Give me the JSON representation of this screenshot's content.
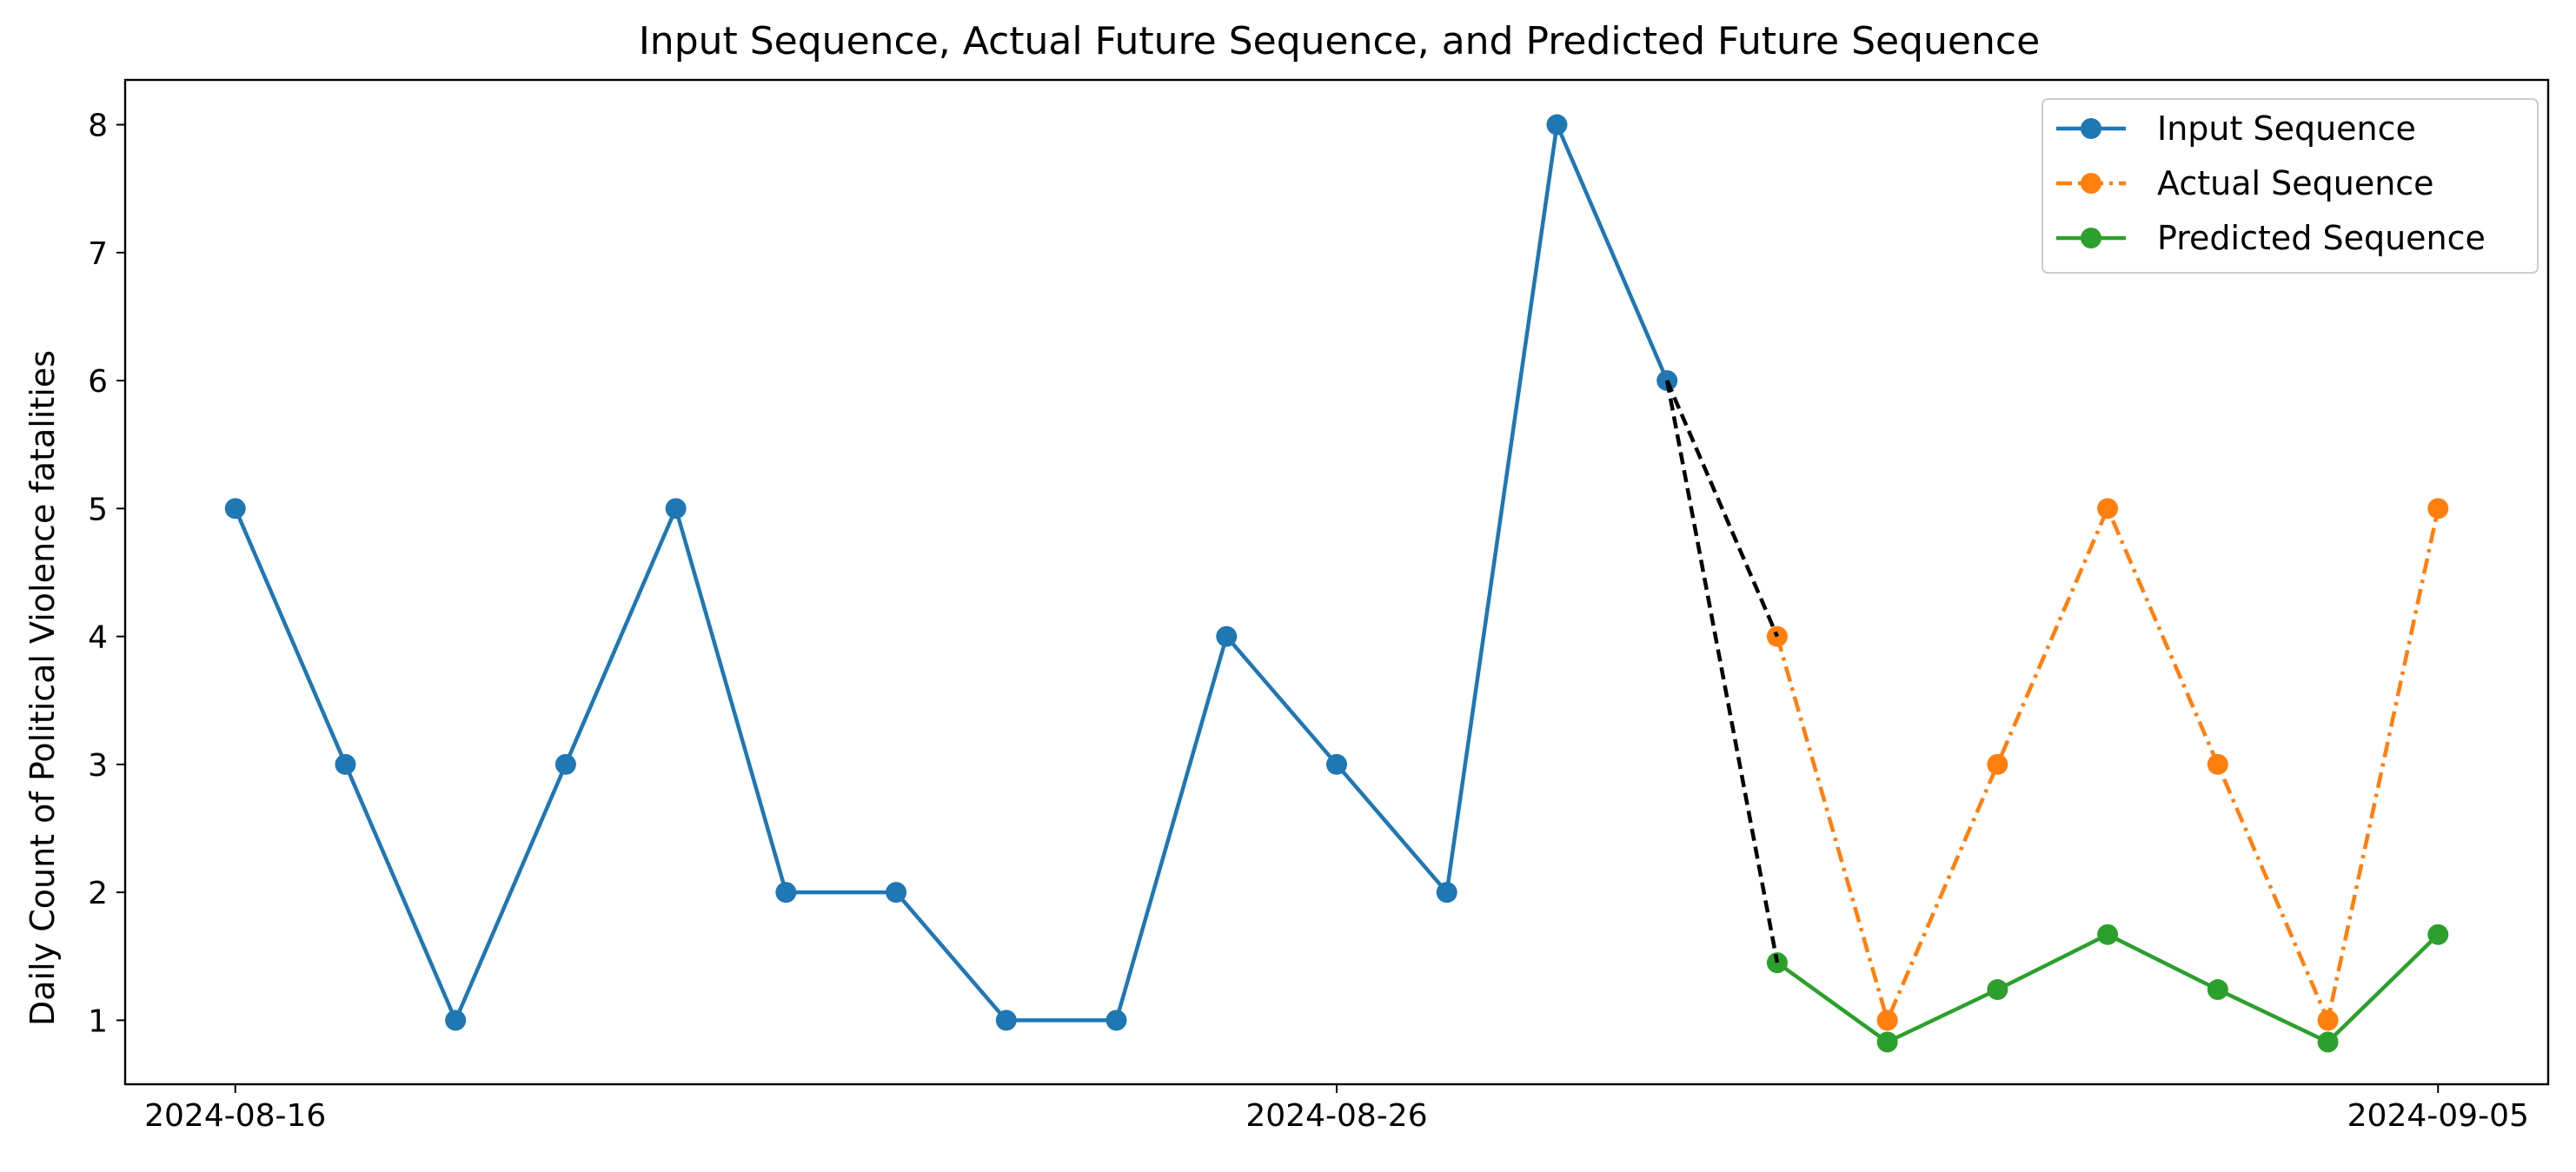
{
  "chart_data": {
    "type": "line",
    "title": "Input Sequence, Actual Future Sequence, and Predicted Future Sequence",
    "xlabel": "",
    "ylabel": "Daily Count of Political Violence fatalities",
    "x_tick_labels": [
      "2024-08-16",
      "2024-08-26",
      "2024-09-05"
    ],
    "x_ticks": [
      "2024-08-16",
      "2024-08-26",
      "2024-09-05"
    ],
    "xlim": [
      "2024-08-15",
      "2024-09-06"
    ],
    "ylim": [
      0.5,
      8.35
    ],
    "y_ticks": [
      1,
      2,
      3,
      4,
      5,
      6,
      7,
      8
    ],
    "grid": false,
    "legend_position": "top-right",
    "series": [
      {
        "name": "Input Sequence",
        "color": "#1f77b4",
        "line_style": "solid",
        "marker": "circle",
        "x": [
          "2024-08-16",
          "2024-08-17",
          "2024-08-18",
          "2024-08-19",
          "2024-08-20",
          "2024-08-21",
          "2024-08-22",
          "2024-08-23",
          "2024-08-24",
          "2024-08-25",
          "2024-08-26",
          "2024-08-27",
          "2024-08-28",
          "2024-08-29"
        ],
        "values": [
          5,
          3,
          1,
          3,
          5,
          2,
          2,
          1,
          1,
          4,
          3,
          2,
          8,
          6
        ]
      },
      {
        "name": "Actual Sequence",
        "color": "#ff7f0e",
        "line_style": "dashdot",
        "marker": "circle",
        "x": [
          "2024-08-30",
          "2024-08-31",
          "2024-09-01",
          "2024-09-02",
          "2024-09-03",
          "2024-09-04",
          "2024-09-05"
        ],
        "values": [
          4,
          1,
          3,
          5,
          3,
          1,
          5
        ]
      },
      {
        "name": "Predicted Sequence",
        "color": "#2ca02c",
        "line_style": "solid",
        "marker": "circle",
        "x": [
          "2024-08-30",
          "2024-08-31",
          "2024-09-01",
          "2024-09-02",
          "2024-09-03",
          "2024-09-04",
          "2024-09-05"
        ],
        "values": [
          1.45,
          0.83,
          1.24,
          1.67,
          1.24,
          0.83,
          1.67
        ]
      }
    ],
    "connectors": {
      "color": "#000000",
      "line_style": "dashed",
      "segments": [
        {
          "from": {
            "x": "2024-08-29",
            "y": 6
          },
          "to": {
            "x": "2024-08-30",
            "y": 4
          }
        },
        {
          "from": {
            "x": "2024-08-29",
            "y": 6
          },
          "to": {
            "x": "2024-08-30",
            "y": 1.45
          }
        }
      ]
    }
  }
}
